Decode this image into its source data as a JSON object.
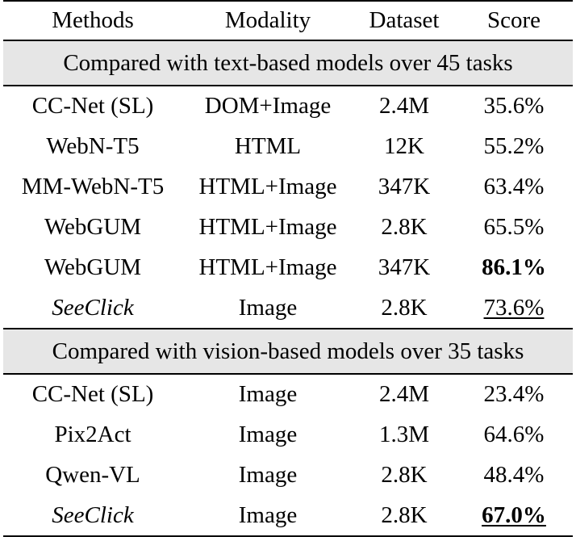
{
  "headers": {
    "method": "Methods",
    "modality": "Modality",
    "dataset": "Dataset",
    "score": "Score"
  },
  "sections": [
    {
      "title": "Compared with text-based models over 45 tasks",
      "rows": [
        {
          "method": "CC-Net (SL)",
          "modality": "DOM+Image",
          "dataset": "2.4M",
          "score": "35.6%",
          "italic": false,
          "bold": false,
          "underline": false
        },
        {
          "method": "WebN-T5",
          "modality": "HTML",
          "dataset": "12K",
          "score": "55.2%",
          "italic": false,
          "bold": false,
          "underline": false
        },
        {
          "method": "MM-WebN-T5",
          "modality": "HTML+Image",
          "dataset": "347K",
          "score": "63.4%",
          "italic": false,
          "bold": false,
          "underline": false
        },
        {
          "method": "WebGUM",
          "modality": "HTML+Image",
          "dataset": "2.8K",
          "score": "65.5%",
          "italic": false,
          "bold": false,
          "underline": false
        },
        {
          "method": "WebGUM",
          "modality": "HTML+Image",
          "dataset": "347K",
          "score": "86.1%",
          "italic": false,
          "bold": true,
          "underline": false
        },
        {
          "method": "SeeClick",
          "modality": "Image",
          "dataset": "2.8K",
          "score": "73.6%",
          "italic": true,
          "bold": false,
          "underline": true
        }
      ]
    },
    {
      "title": "Compared with vision-based models over 35 tasks",
      "rows": [
        {
          "method": "CC-Net (SL)",
          "modality": "Image",
          "dataset": "2.4M",
          "score": "23.4%",
          "italic": false,
          "bold": false,
          "underline": false
        },
        {
          "method": "Pix2Act",
          "modality": "Image",
          "dataset": "1.3M",
          "score": "64.6%",
          "italic": false,
          "bold": false,
          "underline": false
        },
        {
          "method": "Qwen-VL",
          "modality": "Image",
          "dataset": "2.8K",
          "score": "48.4%",
          "italic": false,
          "bold": false,
          "underline": false
        },
        {
          "method": "SeeClick",
          "modality": "Image",
          "dataset": "2.8K",
          "score": "67.0%",
          "italic": true,
          "bold": true,
          "underline": true
        }
      ]
    }
  ]
}
